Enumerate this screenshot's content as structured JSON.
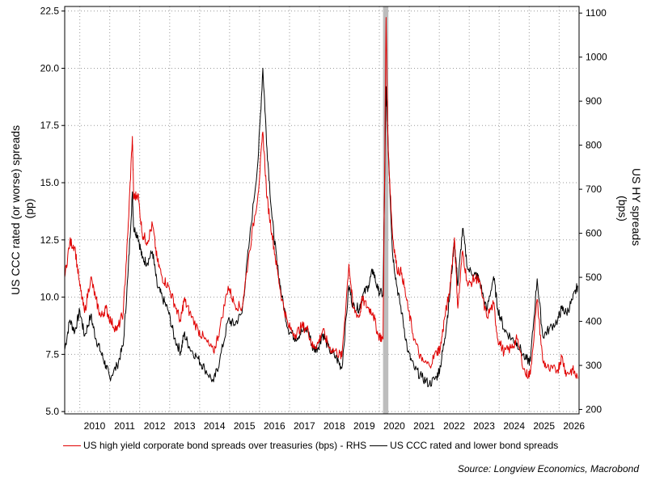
{
  "chart_data": {
    "type": "line",
    "title": "",
    "xlabel": "",
    "x_ticks": [
      "2010",
      "2011",
      "2012",
      "2013",
      "2014",
      "2015",
      "2016",
      "2017",
      "2018",
      "2019",
      "2020",
      "2021",
      "2022",
      "2023",
      "2024",
      "2025",
      "2026"
    ],
    "xlim": [
      "2009-07-01",
      "2026-09-01"
    ],
    "y_left": {
      "label_line1": "US CCC rated (or worse) spreads",
      "label_line2": "(pp)",
      "lim": [
        4.9,
        22.7
      ],
      "ticks": [
        "5.0",
        "7.5",
        "10.0",
        "12.5",
        "15.0",
        "17.5",
        "20.0",
        "22.5"
      ]
    },
    "y_right": {
      "label_line1": "US HY spreads",
      "label_line2": "(bps)",
      "lim": [
        190,
        1115
      ],
      "ticks": [
        "200",
        "300",
        "400",
        "500",
        "600",
        "700",
        "800",
        "900",
        "1000",
        "1100"
      ]
    },
    "grid": true,
    "shaded_region": {
      "from": "2020-02-15",
      "to": "2020-04-20",
      "color": "#bdbdbd"
    },
    "series": [
      {
        "name": "US high yield corporate bond spreads over treasuries (bps) - RHS",
        "axis": "right",
        "color": "#e00000",
        "points": [
          [
            "2009-07-01",
            500
          ],
          [
            "2009-09-01",
            580
          ],
          [
            "2009-11-01",
            570
          ],
          [
            "2010-01-01",
            480
          ],
          [
            "2010-03-01",
            420
          ],
          [
            "2010-05-15",
            500
          ],
          [
            "2010-07-15",
            450
          ],
          [
            "2010-09-15",
            410
          ],
          [
            "2010-11-15",
            430
          ],
          [
            "2011-01-15",
            400
          ],
          [
            "2011-04-01",
            380
          ],
          [
            "2011-06-15",
            420
          ],
          [
            "2011-08-10",
            600
          ],
          [
            "2011-10-04",
            820
          ],
          [
            "2011-10-20",
            680
          ],
          [
            "2011-12-10",
            690
          ],
          [
            "2012-02-01",
            600
          ],
          [
            "2012-04-01",
            580
          ],
          [
            "2012-06-05",
            620
          ],
          [
            "2012-08-01",
            540
          ],
          [
            "2012-10-01",
            500
          ],
          [
            "2012-12-15",
            480
          ],
          [
            "2013-03-01",
            440
          ],
          [
            "2013-05-15",
            400
          ],
          [
            "2013-06-25",
            450
          ],
          [
            "2013-09-01",
            420
          ],
          [
            "2013-12-15",
            380
          ],
          [
            "2014-03-01",
            360
          ],
          [
            "2014-06-20",
            330
          ],
          [
            "2014-09-01",
            380
          ],
          [
            "2014-12-15",
            480
          ],
          [
            "2015-03-01",
            440
          ],
          [
            "2015-06-01",
            430
          ],
          [
            "2015-09-01",
            560
          ],
          [
            "2015-12-15",
            690
          ],
          [
            "2016-02-11",
            830
          ],
          [
            "2016-04-01",
            680
          ],
          [
            "2016-06-01",
            600
          ],
          [
            "2016-08-01",
            520
          ],
          [
            "2016-10-01",
            450
          ],
          [
            "2016-12-15",
            390
          ],
          [
            "2017-03-15",
            370
          ],
          [
            "2017-06-01",
            390
          ],
          [
            "2017-08-15",
            380
          ],
          [
            "2017-10-15",
            340
          ],
          [
            "2017-12-15",
            350
          ],
          [
            "2018-02-09",
            380
          ],
          [
            "2018-05-01",
            340
          ],
          [
            "2018-08-01",
            330
          ],
          [
            "2018-10-01",
            320
          ],
          [
            "2018-12-26",
            530
          ],
          [
            "2019-02-15",
            430
          ],
          [
            "2019-05-01",
            410
          ],
          [
            "2019-06-05",
            450
          ],
          [
            "2019-08-20",
            430
          ],
          [
            "2019-10-15",
            420
          ],
          [
            "2019-12-15",
            370
          ],
          [
            "2020-02-15",
            360
          ],
          [
            "2020-03-23",
            1090
          ],
          [
            "2020-04-15",
            800
          ],
          [
            "2020-06-08",
            600
          ],
          [
            "2020-08-01",
            520
          ],
          [
            "2020-10-01",
            510
          ],
          [
            "2020-12-15",
            430
          ],
          [
            "2021-03-01",
            360
          ],
          [
            "2021-06-01",
            310
          ],
          [
            "2021-09-01",
            300
          ],
          [
            "2021-11-30",
            330
          ],
          [
            "2022-01-15",
            340
          ],
          [
            "2022-03-08",
            410
          ],
          [
            "2022-05-01",
            460
          ],
          [
            "2022-07-05",
            590
          ],
          [
            "2022-08-15",
            430
          ],
          [
            "2022-10-12",
            560
          ],
          [
            "2022-12-15",
            480
          ],
          [
            "2023-03-17",
            500
          ],
          [
            "2023-05-01",
            490
          ],
          [
            "2023-08-01",
            410
          ],
          [
            "2023-10-25",
            440
          ],
          [
            "2023-12-15",
            360
          ],
          [
            "2024-03-01",
            330
          ],
          [
            "2024-06-01",
            340
          ],
          [
            "2024-08-05",
            360
          ],
          [
            "2024-11-15",
            280
          ],
          [
            "2025-01-15",
            280
          ],
          [
            "2025-04-08",
            450
          ],
          [
            "2025-06-15",
            310
          ],
          [
            "2025-09-01",
            290
          ],
          [
            "2025-12-15",
            290
          ],
          [
            "2026-02-01",
            320
          ],
          [
            "2026-04-01",
            280
          ],
          [
            "2026-06-15",
            290
          ],
          [
            "2026-08-15",
            270
          ]
        ]
      },
      {
        "name": "US CCC rated and lower bond spreads",
        "axis": "left",
        "color": "#000000",
        "points": [
          [
            "2009-07-01",
            7.7
          ],
          [
            "2009-09-01",
            9.0
          ],
          [
            "2009-11-01",
            8.5
          ],
          [
            "2010-01-01",
            9.4
          ],
          [
            "2010-03-01",
            8.3
          ],
          [
            "2010-05-15",
            9.2
          ],
          [
            "2010-07-15",
            8.2
          ],
          [
            "2010-09-15",
            7.6
          ],
          [
            "2010-11-15",
            7.0
          ],
          [
            "2011-01-01",
            6.5
          ],
          [
            "2011-04-01",
            7.0
          ],
          [
            "2011-06-15",
            7.9
          ],
          [
            "2011-08-10",
            10.9
          ],
          [
            "2011-10-04",
            14.6
          ],
          [
            "2011-10-20",
            13.0
          ],
          [
            "2011-12-10",
            12.7
          ],
          [
            "2012-02-01",
            11.7
          ],
          [
            "2012-04-01",
            11.5
          ],
          [
            "2012-06-05",
            12.0
          ],
          [
            "2012-08-01",
            10.5
          ],
          [
            "2012-10-01",
            10.0
          ],
          [
            "2012-12-15",
            9.4
          ],
          [
            "2013-03-01",
            8.2
          ],
          [
            "2013-05-15",
            7.6
          ],
          [
            "2013-06-25",
            8.4
          ],
          [
            "2013-09-01",
            7.8
          ],
          [
            "2013-12-15",
            7.3
          ],
          [
            "2014-03-01",
            6.9
          ],
          [
            "2014-06-20",
            6.3
          ],
          [
            "2014-09-01",
            7.2
          ],
          [
            "2014-12-15",
            9.0
          ],
          [
            "2015-03-01",
            8.8
          ],
          [
            "2015-06-01",
            9.3
          ],
          [
            "2015-09-01",
            12.5
          ],
          [
            "2015-12-15",
            16.0
          ],
          [
            "2016-02-11",
            20.0
          ],
          [
            "2016-04-01",
            16.5
          ],
          [
            "2016-06-01",
            13.5
          ],
          [
            "2016-08-01",
            11.5
          ],
          [
            "2016-10-01",
            10.0
          ],
          [
            "2016-12-15",
            8.6
          ],
          [
            "2017-03-15",
            8.2
          ],
          [
            "2017-06-01",
            8.5
          ],
          [
            "2017-08-15",
            8.6
          ],
          [
            "2017-10-15",
            7.7
          ],
          [
            "2017-12-15",
            7.8
          ],
          [
            "2018-02-09",
            8.4
          ],
          [
            "2018-05-01",
            7.7
          ],
          [
            "2018-08-01",
            7.3
          ],
          [
            "2018-10-01",
            6.9
          ],
          [
            "2018-12-26",
            10.5
          ],
          [
            "2019-02-15",
            9.6
          ],
          [
            "2019-05-01",
            9.5
          ],
          [
            "2019-06-05",
            10.0
          ],
          [
            "2019-08-20",
            10.5
          ],
          [
            "2019-10-15",
            11.2
          ],
          [
            "2019-12-15",
            10.3
          ],
          [
            "2020-02-15",
            10.1
          ],
          [
            "2020-03-23",
            19.2
          ],
          [
            "2020-04-15",
            17.0
          ],
          [
            "2020-06-08",
            12.0
          ],
          [
            "2020-08-01",
            10.5
          ],
          [
            "2020-10-01",
            9.3
          ],
          [
            "2020-12-15",
            7.6
          ],
          [
            "2021-03-01",
            6.9
          ],
          [
            "2021-06-01",
            6.5
          ],
          [
            "2021-09-01",
            6.2
          ],
          [
            "2021-11-30",
            6.5
          ],
          [
            "2022-01-15",
            7.0
          ],
          [
            "2022-03-08",
            8.2
          ],
          [
            "2022-05-01",
            9.8
          ],
          [
            "2022-07-05",
            12.5
          ],
          [
            "2022-08-15",
            10.5
          ],
          [
            "2022-10-12",
            13.0
          ],
          [
            "2022-12-15",
            11.2
          ],
          [
            "2023-03-17",
            11.0
          ],
          [
            "2023-05-01",
            10.8
          ],
          [
            "2023-08-01",
            9.4
          ],
          [
            "2023-10-25",
            10.9
          ],
          [
            "2023-12-15",
            9.5
          ],
          [
            "2024-03-01",
            8.6
          ],
          [
            "2024-06-01",
            8.2
          ],
          [
            "2024-08-05",
            8.0
          ],
          [
            "2024-11-15",
            7.3
          ],
          [
            "2025-01-15",
            7.2
          ],
          [
            "2025-04-08",
            10.8
          ],
          [
            "2025-06-15",
            8.3
          ],
          [
            "2025-09-01",
            8.6
          ],
          [
            "2025-12-15",
            9.0
          ],
          [
            "2026-02-01",
            9.5
          ],
          [
            "2026-04-01",
            9.3
          ],
          [
            "2026-06-15",
            9.9
          ],
          [
            "2026-08-15",
            10.5
          ]
        ]
      }
    ],
    "legend_placement": "bottom"
  },
  "source": "Source: Longview Economics, Macrobond"
}
